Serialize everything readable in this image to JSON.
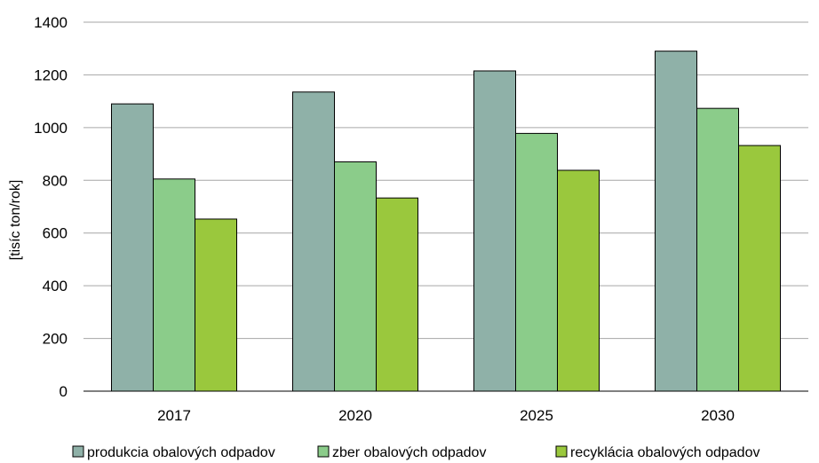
{
  "chart_data": {
    "type": "bar",
    "title": "",
    "xlabel": "",
    "ylabel": "[tisíc ton/rok]",
    "categories": [
      "2017",
      "2020",
      "2025",
      "2030"
    ],
    "ylim": [
      0,
      1400
    ],
    "yticks": [
      0,
      200,
      400,
      600,
      800,
      1000,
      1200,
      1400
    ],
    "grid": true,
    "legend_position": "bottom",
    "series": [
      {
        "name": "produkcia obalových odpadov",
        "color": "#8fb1a8",
        "values": [
          1090,
          1135,
          1215,
          1290
        ]
      },
      {
        "name": "zber obalových odpadov",
        "color": "#8bcc8a",
        "values": [
          805,
          870,
          978,
          1073
        ]
      },
      {
        "name": "recyklácia obalových odpadov",
        "color": "#9ac83d",
        "values": [
          653,
          733,
          838,
          932
        ]
      }
    ]
  }
}
